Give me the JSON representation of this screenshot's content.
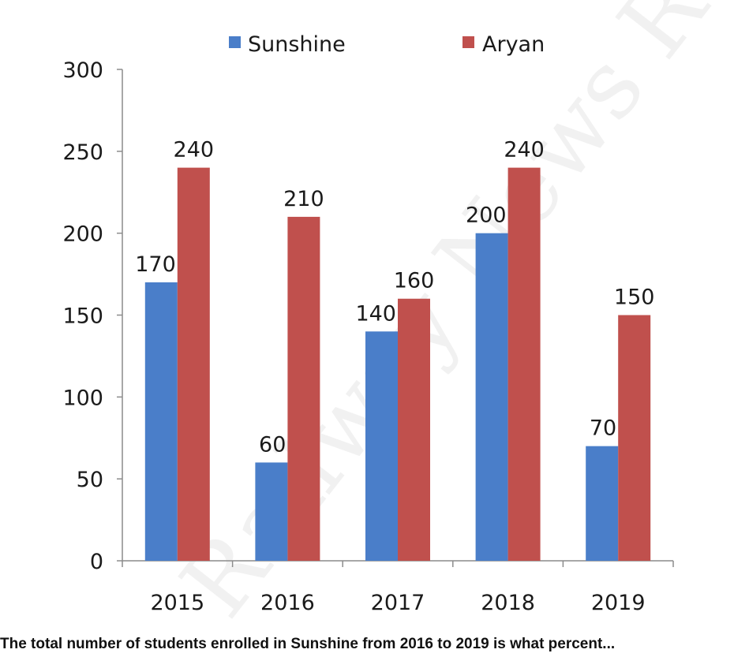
{
  "chart_data": {
    "type": "bar",
    "categories": [
      "2015",
      "2016",
      "2017",
      "2018",
      "2019"
    ],
    "series": [
      {
        "name": "Sunshine",
        "values": [
          170,
          60,
          140,
          200,
          70
        ],
        "color": "#4a7ec9"
      },
      {
        "name": "Aryan",
        "values": [
          240,
          210,
          160,
          240,
          150
        ],
        "color": "#c0504d"
      }
    ],
    "ylim": [
      0,
      300
    ],
    "yticks": [
      0,
      50,
      100,
      150,
      200,
      250,
      300
    ],
    "title": "",
    "xlabel": "",
    "ylabel": "",
    "grid": false,
    "legend": "top"
  },
  "watermark": "Railway News Room",
  "caption": "The total number of students enrolled in Sunshine from 2016 to 2019 is what percent..."
}
